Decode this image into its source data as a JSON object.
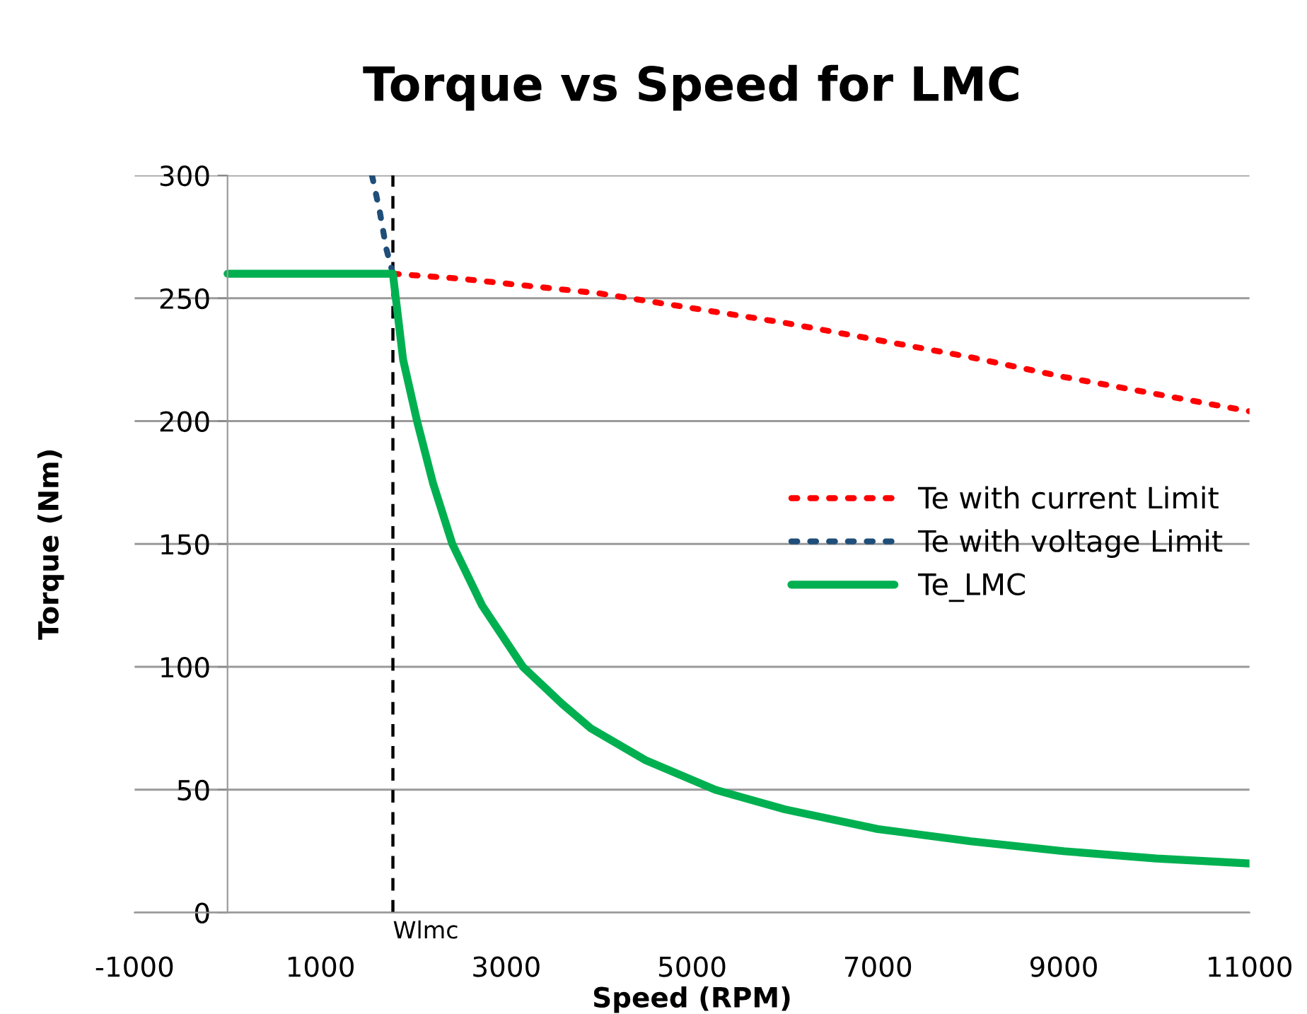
{
  "chart_data": {
    "type": "line",
    "title": "Torque vs Speed for LMC",
    "xlabel": "Speed (RPM)",
    "ylabel": "Torque (Nm)",
    "xlim": [
      -1000,
      11000
    ],
    "xticks": [
      -1000,
      1000,
      3000,
      5000,
      7000,
      9000,
      11000
    ],
    "ylim": [
      0,
      300
    ],
    "yticks": [
      0,
      50,
      100,
      150,
      200,
      250,
      300
    ],
    "grid": "y",
    "legend": "right",
    "marker": "none",
    "series": [
      {
        "name": "Te with current Limit",
        "color": "#ff0000",
        "line_style": "dotted",
        "x": [
          1780,
          2500,
          3000,
          3500,
          4000,
          4500,
          5000,
          5500,
          6000,
          7000,
          8000,
          9000,
          10000,
          11000
        ],
        "values": [
          260,
          258,
          256,
          254,
          252,
          249,
          246,
          243,
          240,
          233,
          226,
          218,
          211,
          204
        ]
      },
      {
        "name": "Te with voltage Limit",
        "color": "#1f4e79",
        "line_style": "dotted",
        "x": [
          1555,
          1640,
          1710,
          1780
        ],
        "values": [
          300,
          285,
          270,
          260
        ]
      },
      {
        "name": "Te_LMC",
        "color": "#00b050",
        "line_style": "solid",
        "x": [
          0,
          1780,
          1890,
          2040,
          2210,
          2420,
          2740,
          3180,
          3600,
          3910,
          4500,
          5250,
          6000,
          7000,
          8000,
          9000,
          10000,
          11000
        ],
        "values": [
          260,
          260,
          225,
          200,
          175,
          150,
          125,
          100,
          85,
          75,
          62,
          50,
          42,
          34,
          29,
          25,
          22,
          20
        ]
      }
    ],
    "ref_lines": [
      {
        "axis": "x",
        "value": 1780,
        "label": "Wlmc",
        "color": "#000000",
        "line_style": "dashed"
      }
    ]
  }
}
